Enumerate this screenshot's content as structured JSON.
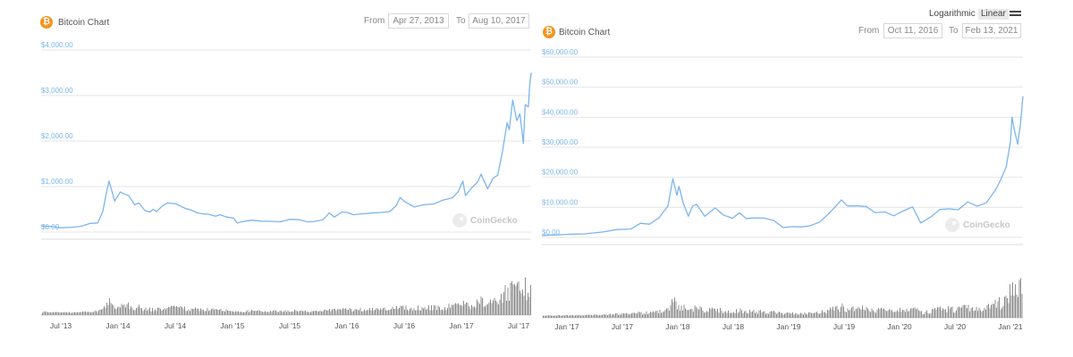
{
  "chart_data": [
    {
      "type": "line",
      "title": "Bitcoin Chart",
      "controls": {
        "from_label": "From",
        "from": "Apr 27, 2013",
        "to_label": "To",
        "to": "Aug 10, 2017"
      },
      "watermark": "CoinGecko",
      "y_ticks": [
        "$0.00",
        "$1,000.00",
        "$2,000.00",
        "$3,000.00",
        "$4,000.00"
      ],
      "ylim": [
        0,
        4000
      ],
      "x_ticks": [
        "Jul '13",
        "Jan '14",
        "Jul '14",
        "Jan '15",
        "Jul '15",
        "Jan '16",
        "Jul '16",
        "Jan '17",
        "Jul '17"
      ],
      "xlim": [
        "2013-04-27",
        "2017-08-10"
      ],
      "grid": true,
      "colors": {
        "line": "#7cb5ec",
        "volume": "#8c8c8c",
        "brand": "#f7931a"
      },
      "series": [
        {
          "x": [
            "2013-04-27",
            "2013-06-01",
            "2013-07-01",
            "2013-08-01",
            "2013-09-01",
            "2013-10-01",
            "2013-10-25",
            "2013-11-10",
            "2013-11-20",
            "2013-11-30",
            "2013-12-05",
            "2013-12-10",
            "2013-12-18",
            "2013-12-25",
            "2014-01-05",
            "2014-01-20",
            "2014-02-01",
            "2014-02-20",
            "2014-03-05",
            "2014-03-25",
            "2014-04-10",
            "2014-04-20",
            "2014-05-01",
            "2014-05-20",
            "2014-06-05",
            "2014-07-01",
            "2014-08-01",
            "2014-08-20",
            "2014-09-10",
            "2014-09-25",
            "2014-10-15",
            "2014-11-05",
            "2014-11-20",
            "2014-12-10",
            "2015-01-01",
            "2015-01-14",
            "2015-02-01",
            "2015-03-01",
            "2015-04-01",
            "2015-05-01",
            "2015-06-01",
            "2015-07-01",
            "2015-08-01",
            "2015-08-25",
            "2015-09-15",
            "2015-10-15",
            "2015-11-04",
            "2015-11-20",
            "2015-12-15",
            "2016-01-01",
            "2016-01-20",
            "2016-02-15",
            "2016-03-15",
            "2016-04-15",
            "2016-05-15",
            "2016-06-05",
            "2016-06-17",
            "2016-07-01",
            "2016-08-02",
            "2016-09-01",
            "2016-10-01",
            "2016-11-01",
            "2016-12-01",
            "2016-12-20",
            "2017-01-04",
            "2017-01-12",
            "2017-02-01",
            "2017-02-20",
            "2017-03-03",
            "2017-03-24",
            "2017-04-10",
            "2017-04-25",
            "2017-05-10",
            "2017-05-25",
            "2017-06-01",
            "2017-06-12",
            "2017-06-25",
            "2017-07-05",
            "2017-07-16",
            "2017-07-22",
            "2017-08-01",
            "2017-08-05",
            "2017-08-10"
          ],
          "values": [
            135,
            120,
            95,
            105,
            125,
            190,
            200,
            450,
            800,
            1120,
            1000,
            880,
            680,
            760,
            880,
            830,
            800,
            600,
            640,
            470,
            440,
            500,
            450,
            580,
            640,
            620,
            520,
            480,
            420,
            400,
            390,
            350,
            380,
            330,
            310,
            200,
            230,
            260,
            240,
            235,
            225,
            280,
            270,
            225,
            230,
            270,
            420,
            330,
            440,
            430,
            380,
            400,
            415,
            430,
            450,
            580,
            760,
            670,
            550,
            600,
            615,
            700,
            750,
            890,
            1120,
            800,
            970,
            1100,
            1270,
            950,
            1180,
            1250,
            1750,
            2400,
            2250,
            2900,
            2450,
            2600,
            1950,
            2800,
            2750,
            3200,
            3500
          ]
        }
      ]
    },
    {
      "type": "line",
      "title": "Bitcoin Chart",
      "controls": {
        "from_label": "From",
        "from": "Oct 11, 2016",
        "to_label": "To",
        "to": "Feb 13, 2021"
      },
      "scale_options": [
        "Logarithmic",
        "Linear"
      ],
      "scale_selected": "Linear",
      "watermark": "CoinGecko",
      "y_ticks": [
        "$0.00",
        "$10,000.00",
        "$20,000.00",
        "$30,000.00",
        "$40,000.00",
        "$50,000.00",
        "$60,000.00"
      ],
      "ylim": [
        0,
        60000
      ],
      "x_ticks": [
        "Jan '17",
        "Jul '17",
        "Jan '18",
        "Jul '18",
        "Jan '19",
        "Jul '19",
        "Jan '20",
        "Jul '20",
        "Jan '21"
      ],
      "xlim": [
        "2016-10-11",
        "2021-02-13"
      ],
      "grid": true,
      "colors": {
        "line": "#7cb5ec",
        "volume": "#8c8c8c",
        "brand": "#f7931a"
      },
      "series": [
        {
          "x": [
            "2016-10-11",
            "2017-01-01",
            "2017-03-01",
            "2017-05-01",
            "2017-06-15",
            "2017-08-01",
            "2017-09-01",
            "2017-10-01",
            "2017-11-01",
            "2017-12-01",
            "2017-12-17",
            "2017-12-30",
            "2018-01-06",
            "2018-01-20",
            "2018-02-06",
            "2018-02-20",
            "2018-03-05",
            "2018-04-01",
            "2018-05-05",
            "2018-06-01",
            "2018-07-01",
            "2018-07-25",
            "2018-08-15",
            "2018-09-15",
            "2018-10-15",
            "2018-11-15",
            "2018-12-15",
            "2019-01-15",
            "2019-02-15",
            "2019-03-15",
            "2019-04-15",
            "2019-05-15",
            "2019-06-26",
            "2019-07-15",
            "2019-08-15",
            "2019-09-15",
            "2019-10-15",
            "2019-11-15",
            "2019-12-15",
            "2020-01-15",
            "2020-02-15",
            "2020-03-13",
            "2020-04-15",
            "2020-05-15",
            "2020-06-15",
            "2020-07-15",
            "2020-08-15",
            "2020-09-15",
            "2020-10-15",
            "2020-11-15",
            "2020-12-01",
            "2020-12-20",
            "2021-01-03",
            "2021-01-08",
            "2021-01-15",
            "2021-01-27",
            "2021-02-05",
            "2021-02-13"
          ],
          "values": [
            600,
            1000,
            1200,
            1800,
            2600,
            2800,
            4700,
            4400,
            6500,
            10500,
            19500,
            14000,
            17000,
            11500,
            7000,
            10500,
            11000,
            7000,
            9800,
            7500,
            6400,
            8200,
            6300,
            6500,
            6400,
            5600,
            3300,
            3600,
            3500,
            3900,
            5100,
            7900,
            12500,
            10500,
            10500,
            10300,
            8200,
            8500,
            7200,
            8800,
            10200,
            4800,
            6800,
            9300,
            9500,
            9200,
            11800,
            10400,
            11500,
            15900,
            19000,
            23500,
            32000,
            40000,
            36000,
            31000,
            38000,
            47000
          ]
        }
      ]
    }
  ]
}
